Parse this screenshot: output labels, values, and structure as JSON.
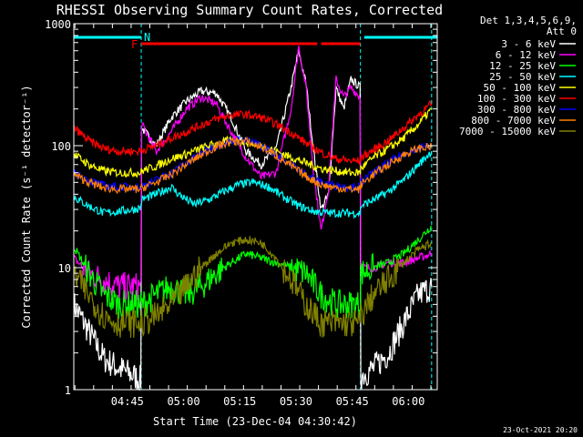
{
  "chart_data": {
    "type": "line",
    "title": "RHESSI Observing Summary Count Rates, Corrected",
    "xlabel": "Start Time (23-Dec-04 04:30:42)",
    "ylabel": "Corrected Count Rate (s⁻¹ detector⁻¹)",
    "yscale": "log",
    "ylim": [
      1,
      1000
    ],
    "xlim": [
      0,
      97
    ],
    "x_unit": "minutes after 04:30:42",
    "x_ticks": [
      {
        "x": 14.3,
        "label": "04:45"
      },
      {
        "x": 29.3,
        "label": "05:00"
      },
      {
        "x": 44.3,
        "label": "05:15"
      },
      {
        "x": 59.3,
        "label": "05:30"
      },
      {
        "x": 74.3,
        "label": "05:45"
      },
      {
        "x": 89.3,
        "label": "06:00"
      }
    ],
    "y_ticks": [
      {
        "y": 1,
        "label": "1"
      },
      {
        "y": 10,
        "label": "10"
      },
      {
        "y": 100,
        "label": "100"
      },
      {
        "y": 1000,
        "label": "1000"
      }
    ],
    "detector_header": "Det 1,3,4,5,6,9,",
    "attenuator_header": "Att 0",
    "flags": {
      "night_label": "N",
      "night_color": "#00ffff",
      "night_intervals": [
        [
          0,
          18
        ],
        [
          77.5,
          97
        ]
      ],
      "flare_label": "F",
      "flare_color": "#ff0000",
      "flare_intervals": [
        [
          18,
          65
        ],
        [
          66,
          76.5
        ]
      ]
    },
    "boundary_lines": [
      18,
      76.5,
      95.5
    ],
    "series": [
      {
        "name": "3 - 6 keV",
        "color": "#ffffff",
        "x": [
          0,
          4,
          8,
          12,
          16,
          17.9,
          18.1,
          22,
          26,
          30,
          34,
          38,
          42,
          46,
          50,
          54,
          58,
          60,
          62,
          64,
          66,
          68,
          70,
          72,
          74,
          76.4,
          76.6,
          80,
          84,
          88,
          92,
          95.5
        ],
        "y": [
          5,
          3,
          1.8,
          1.5,
          1.3,
          1.2,
          140,
          100,
          170,
          230,
          280,
          270,
          170,
          90,
          70,
          95,
          300,
          600,
          320,
          90,
          30,
          40,
          300,
          200,
          350,
          300,
          1.3,
          1.5,
          2,
          3.5,
          6,
          7
        ]
      },
      {
        "name": "6 - 12 keV",
        "color": "#ff00ff",
        "x": [
          0,
          4,
          8,
          12,
          16,
          17.9,
          18.1,
          22,
          26,
          30,
          34,
          38,
          42,
          46,
          50,
          54,
          58,
          60,
          62,
          64,
          66,
          68,
          70,
          72,
          74,
          76.4,
          76.6,
          80,
          84,
          88,
          92,
          95.5
        ],
        "y": [
          12,
          9,
          8,
          7,
          7,
          7,
          150,
          90,
          130,
          200,
          250,
          220,
          130,
          80,
          55,
          60,
          200,
          650,
          300,
          60,
          20,
          45,
          350,
          250,
          300,
          250,
          10,
          10,
          11,
          11,
          12,
          13
        ]
      },
      {
        "name": "12 - 25 keV",
        "color": "#00ff00",
        "x": [
          0,
          4,
          8,
          12,
          16,
          17.9,
          18.1,
          22,
          26,
          30,
          34,
          38,
          42,
          46,
          50,
          54,
          58,
          62,
          66,
          70,
          74,
          76.4,
          76.6,
          80,
          84,
          88,
          92,
          95.5
        ],
        "y": [
          15,
          9,
          6,
          5,
          5,
          5,
          5,
          6,
          7,
          6,
          7,
          9,
          11,
          13,
          12,
          11,
          10,
          9,
          6,
          5,
          5,
          5,
          9,
          10,
          11,
          13,
          17,
          22
        ]
      },
      {
        "name": "25 - 50 keV",
        "color": "#00ffff",
        "x": [
          0,
          4,
          8,
          12,
          16,
          17.9,
          18.1,
          22,
          26,
          28,
          32,
          36,
          40,
          44,
          48,
          52,
          56,
          60,
          64,
          68,
          72,
          76.4,
          76.6,
          80,
          84,
          88,
          92,
          95.5
        ],
        "y": [
          38,
          32,
          28,
          29,
          30,
          31,
          36,
          40,
          46,
          40,
          33,
          36,
          42,
          48,
          50,
          46,
          38,
          32,
          29,
          28,
          28,
          28,
          32,
          36,
          42,
          52,
          70,
          90
        ]
      },
      {
        "name": "50 - 100 keV",
        "color": "#ffff00",
        "x": [
          0,
          4,
          8,
          12,
          16,
          17.9,
          18.1,
          22,
          26,
          30,
          34,
          38,
          42,
          46,
          50,
          54,
          58,
          62,
          66,
          70,
          74,
          76.4,
          76.6,
          80,
          84,
          88,
          92,
          95.5
        ],
        "y": [
          85,
          70,
          62,
          60,
          60,
          60,
          62,
          68,
          78,
          85,
          95,
          104,
          110,
          108,
          100,
          90,
          80,
          72,
          65,
          62,
          60,
          60,
          65,
          80,
          95,
          115,
          150,
          200
        ]
      },
      {
        "name": "100 - 300 keV",
        "color": "#ff0000",
        "x": [
          0,
          4,
          8,
          12,
          16,
          17.9,
          18.1,
          22,
          26,
          30,
          34,
          38,
          42,
          46,
          50,
          54,
          58,
          62,
          66,
          70,
          74,
          76.4,
          76.6,
          80,
          84,
          88,
          92,
          95.5
        ],
        "y": [
          140,
          110,
          95,
          90,
          90,
          90,
          92,
          100,
          115,
          130,
          148,
          165,
          178,
          180,
          170,
          150,
          128,
          105,
          88,
          78,
          75,
          75,
          80,
          92,
          110,
          140,
          180,
          220
        ]
      },
      {
        "name": "300 - 800 keV",
        "color": "#0000ff",
        "x": [
          0,
          4,
          8,
          12,
          16,
          17.9,
          18.1,
          22,
          26,
          30,
          34,
          38,
          42,
          46,
          50,
          54,
          58,
          62,
          66,
          70,
          74,
          76.4,
          76.6,
          80,
          84,
          88,
          92,
          95.5
        ],
        "y": [
          60,
          52,
          47,
          46,
          46,
          46,
          47,
          52,
          60,
          72,
          86,
          100,
          110,
          110,
          100,
          85,
          70,
          58,
          50,
          47,
          46,
          46,
          50,
          60,
          72,
          86,
          96,
          100
        ]
      },
      {
        "name": "800 - 7000 keV",
        "color": "#ff8000",
        "x": [
          0,
          4,
          8,
          12,
          16,
          17.9,
          18.1,
          22,
          26,
          30,
          34,
          38,
          42,
          46,
          50,
          54,
          58,
          62,
          66,
          70,
          74,
          76.4,
          76.6,
          80,
          84,
          88,
          92,
          95.5
        ],
        "y": [
          58,
          50,
          45,
          44,
          44,
          44,
          45,
          50,
          58,
          70,
          84,
          98,
          108,
          108,
          98,
          83,
          68,
          56,
          48,
          45,
          44,
          44,
          48,
          58,
          70,
          84,
          95,
          98
        ]
      },
      {
        "name": "7000 - 15000 keV",
        "color": "#808000",
        "x": [
          0,
          4,
          8,
          12,
          16,
          17.9,
          18.1,
          22,
          26,
          30,
          34,
          38,
          42,
          46,
          50,
          54,
          58,
          62,
          66,
          70,
          74,
          76.4,
          76.6,
          80,
          84,
          88,
          92,
          95.5
        ],
        "y": [
          9,
          6,
          4,
          3.5,
          3.5,
          3.5,
          3.5,
          4,
          5,
          7,
          10,
          13,
          16,
          17,
          16,
          12,
          8,
          5,
          3.5,
          3.5,
          3.5,
          3.5,
          4,
          6,
          8,
          11,
          14,
          16
        ]
      }
    ]
  },
  "footer": {
    "timestamp": "23-Oct-2021 20:20"
  }
}
